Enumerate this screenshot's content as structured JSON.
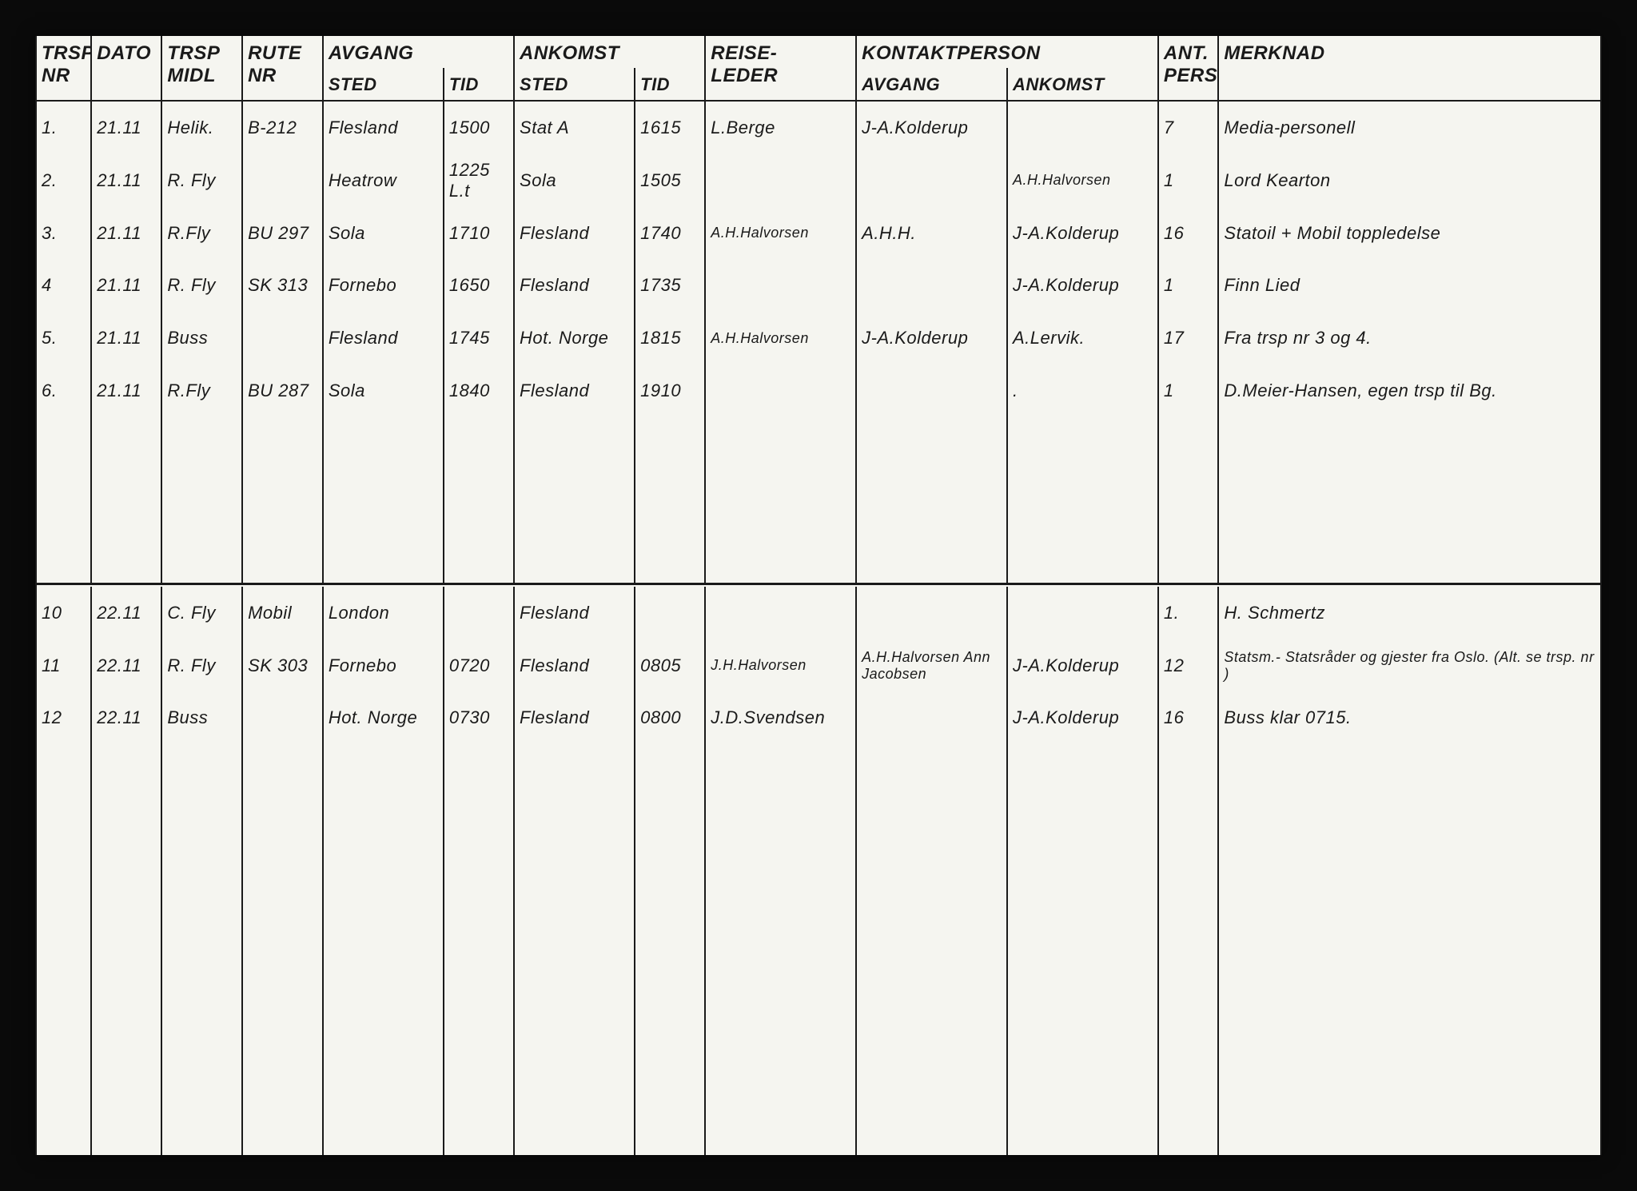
{
  "headers": {
    "trsp_nr": "Trsp\nNr",
    "dato": "Dato",
    "trsp_midl": "Trsp\nMidl",
    "rute_nr": "Rute\nNr",
    "avgang": "Avgang",
    "avgang_sted": "Sted",
    "avgang_tid": "Tid",
    "ankomst": "Ankomst",
    "ankomst_sted": "Sted",
    "ankomst_tid": "Tid",
    "reise_leder": "Reise-\nleder",
    "kontakt": "Kontaktperson",
    "kontakt_avgang": "Avgang",
    "kontakt_ankomst": "Ankomst",
    "ant_pers": "Ant.\nPers.",
    "merknad": "Merknad"
  },
  "rows_top": [
    {
      "nr": "1.",
      "dato": "21.11",
      "midl": "Helik.",
      "rute": "B-212",
      "avsted": "Flesland",
      "avtid": "1500",
      "ansted": "Stat A",
      "antid": "1615",
      "leder": "L.Berge",
      "kavg": "J-A.Kolderup",
      "kank": "",
      "pers": "7",
      "merk": "Media-personell"
    },
    {
      "nr": "2.",
      "dato": "21.11",
      "midl": "R. Fly",
      "rute": "",
      "avsted": "Heatrow",
      "avtid": "1225 L.t",
      "ansted": "Sola",
      "antid": "1505",
      "leder": "",
      "kavg": "",
      "kank": "A.H.Halvorsen",
      "pers": "1",
      "merk": "Lord Kearton"
    },
    {
      "nr": "3.",
      "dato": "21.11",
      "midl": "R.Fly",
      "rute": "BU 297",
      "avsted": "Sola",
      "avtid": "1710",
      "ansted": "Flesland",
      "antid": "1740",
      "leder": "A.H.Halvorsen",
      "kavg": "A.H.H.",
      "kank": "J-A.Kolderup",
      "pers": "16",
      "merk": "Statoil + Mobil toppledelse"
    },
    {
      "nr": "4",
      "dato": "21.11",
      "midl": "R. Fly",
      "rute": "SK 313",
      "avsted": "Fornebo",
      "avtid": "1650",
      "ansted": "Flesland",
      "antid": "1735",
      "leder": "",
      "kavg": "",
      "kank": "J-A.Kolderup",
      "pers": "1",
      "merk": "Finn Lied"
    },
    {
      "nr": "5.",
      "dato": "21.11",
      "midl": "Buss",
      "rute": "",
      "avsted": "Flesland",
      "avtid": "1745",
      "ansted": "Hot. Norge",
      "antid": "1815",
      "leder": "A.H.Halvorsen",
      "kavg": "J-A.Kolderup",
      "kank": "A.Lervik.",
      "pers": "17",
      "merk": "Fra trsp nr 3 og 4."
    },
    {
      "nr": "6.",
      "dato": "21.11",
      "midl": "R.Fly",
      "rute": "BU 287",
      "avsted": "Sola",
      "avtid": "1840",
      "ansted": "Flesland",
      "antid": "1910",
      "leder": "",
      "kavg": "",
      "kank": ".",
      "pers": "1",
      "merk": "D.Meier-Hansen, egen trsp til Bg."
    }
  ],
  "rows_bottom": [
    {
      "nr": "10",
      "dato": "22.11",
      "midl": "C. Fly",
      "rute": "Mobil",
      "avsted": "London",
      "avtid": "",
      "ansted": "Flesland",
      "antid": "",
      "leder": "",
      "kavg": "",
      "kank": "",
      "pers": "1.",
      "merk": "H. Schmertz"
    },
    {
      "nr": "11",
      "dato": "22.11",
      "midl": "R. Fly",
      "rute": "SK 303",
      "avsted": "Fornebo",
      "avtid": "0720",
      "ansted": "Flesland",
      "antid": "0805",
      "leder": "J.H.Halvorsen",
      "kavg": "A.H.Halvorsen Ann Jacobsen",
      "kank": "J-A.Kolderup",
      "pers": "12",
      "merk": "Statsm.- Statsråder og gjester fra Oslo. (Alt. se trsp. nr )"
    },
    {
      "nr": "12",
      "dato": "22.11",
      "midl": "Buss",
      "rute": "",
      "avsted": "Hot. Norge",
      "avtid": "0730",
      "ansted": "Flesland",
      "antid": "0800",
      "leder": "J.D.Svendsen",
      "kavg": "",
      "kank": "J-A.Kolderup",
      "pers": "16",
      "merk": "Buss klar 0715."
    }
  ],
  "style": {
    "background": "#f5f5f0",
    "border_color": "#1a1a1a",
    "text_color": "#1a1a1a",
    "page_bg": "#0a0a0a",
    "font": "handwritten",
    "header_fontsize": 24,
    "cell_fontsize": 22,
    "border_width": 2
  }
}
